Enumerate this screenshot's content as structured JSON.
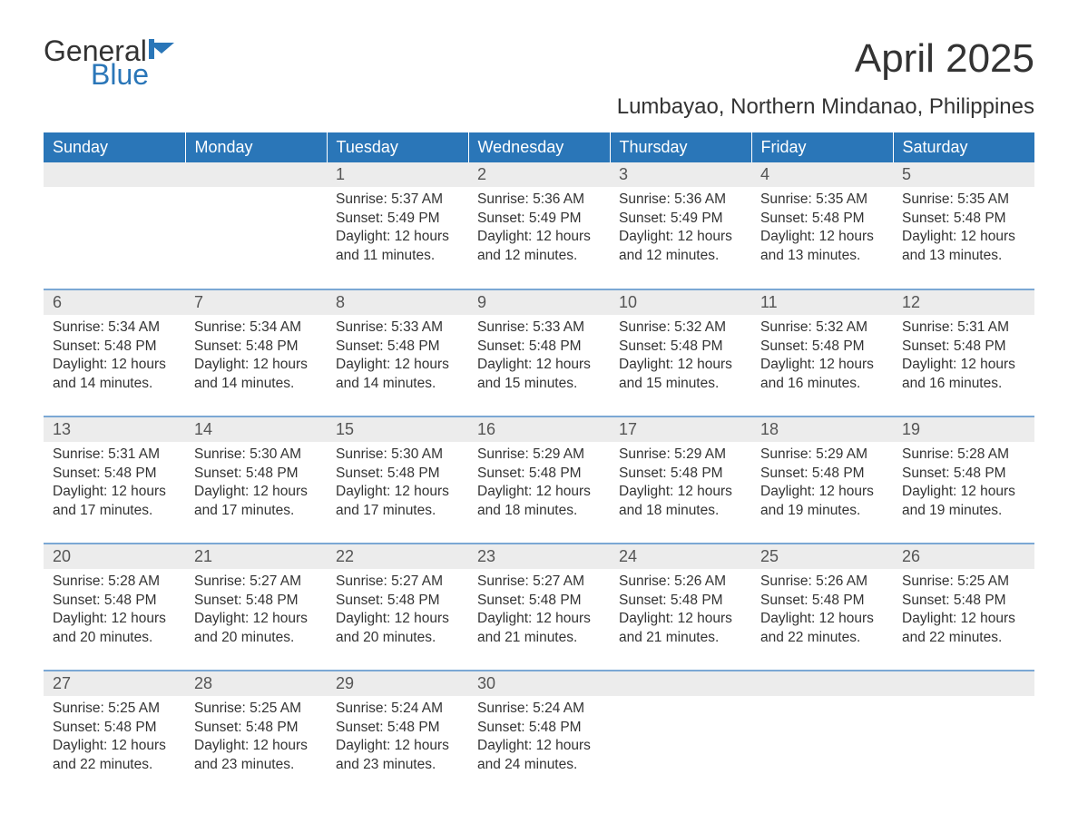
{
  "brand": {
    "part1": "General",
    "part2": "Blue",
    "flag_color": "#2a76b8"
  },
  "title": "April 2025",
  "location": "Lumbayao, Northern Mindanao, Philippines",
  "colors": {
    "header_bg": "#2a76b8",
    "header_text": "#ffffff",
    "daynum_bg": "#ececec",
    "row_border": "#7ba8d4",
    "body_text": "#333333"
  },
  "day_headers": [
    "Sunday",
    "Monday",
    "Tuesday",
    "Wednesday",
    "Thursday",
    "Friday",
    "Saturday"
  ],
  "weeks": [
    [
      null,
      null,
      {
        "n": "1",
        "sr": "Sunrise: 5:37 AM",
        "ss": "Sunset: 5:49 PM",
        "d1": "Daylight: 12 hours",
        "d2": "and 11 minutes."
      },
      {
        "n": "2",
        "sr": "Sunrise: 5:36 AM",
        "ss": "Sunset: 5:49 PM",
        "d1": "Daylight: 12 hours",
        "d2": "and 12 minutes."
      },
      {
        "n": "3",
        "sr": "Sunrise: 5:36 AM",
        "ss": "Sunset: 5:49 PM",
        "d1": "Daylight: 12 hours",
        "d2": "and 12 minutes."
      },
      {
        "n": "4",
        "sr": "Sunrise: 5:35 AM",
        "ss": "Sunset: 5:48 PM",
        "d1": "Daylight: 12 hours",
        "d2": "and 13 minutes."
      },
      {
        "n": "5",
        "sr": "Sunrise: 5:35 AM",
        "ss": "Sunset: 5:48 PM",
        "d1": "Daylight: 12 hours",
        "d2": "and 13 minutes."
      }
    ],
    [
      {
        "n": "6",
        "sr": "Sunrise: 5:34 AM",
        "ss": "Sunset: 5:48 PM",
        "d1": "Daylight: 12 hours",
        "d2": "and 14 minutes."
      },
      {
        "n": "7",
        "sr": "Sunrise: 5:34 AM",
        "ss": "Sunset: 5:48 PM",
        "d1": "Daylight: 12 hours",
        "d2": "and 14 minutes."
      },
      {
        "n": "8",
        "sr": "Sunrise: 5:33 AM",
        "ss": "Sunset: 5:48 PM",
        "d1": "Daylight: 12 hours",
        "d2": "and 14 minutes."
      },
      {
        "n": "9",
        "sr": "Sunrise: 5:33 AM",
        "ss": "Sunset: 5:48 PM",
        "d1": "Daylight: 12 hours",
        "d2": "and 15 minutes."
      },
      {
        "n": "10",
        "sr": "Sunrise: 5:32 AM",
        "ss": "Sunset: 5:48 PM",
        "d1": "Daylight: 12 hours",
        "d2": "and 15 minutes."
      },
      {
        "n": "11",
        "sr": "Sunrise: 5:32 AM",
        "ss": "Sunset: 5:48 PM",
        "d1": "Daylight: 12 hours",
        "d2": "and 16 minutes."
      },
      {
        "n": "12",
        "sr": "Sunrise: 5:31 AM",
        "ss": "Sunset: 5:48 PM",
        "d1": "Daylight: 12 hours",
        "d2": "and 16 minutes."
      }
    ],
    [
      {
        "n": "13",
        "sr": "Sunrise: 5:31 AM",
        "ss": "Sunset: 5:48 PM",
        "d1": "Daylight: 12 hours",
        "d2": "and 17 minutes."
      },
      {
        "n": "14",
        "sr": "Sunrise: 5:30 AM",
        "ss": "Sunset: 5:48 PM",
        "d1": "Daylight: 12 hours",
        "d2": "and 17 minutes."
      },
      {
        "n": "15",
        "sr": "Sunrise: 5:30 AM",
        "ss": "Sunset: 5:48 PM",
        "d1": "Daylight: 12 hours",
        "d2": "and 17 minutes."
      },
      {
        "n": "16",
        "sr": "Sunrise: 5:29 AM",
        "ss": "Sunset: 5:48 PM",
        "d1": "Daylight: 12 hours",
        "d2": "and 18 minutes."
      },
      {
        "n": "17",
        "sr": "Sunrise: 5:29 AM",
        "ss": "Sunset: 5:48 PM",
        "d1": "Daylight: 12 hours",
        "d2": "and 18 minutes."
      },
      {
        "n": "18",
        "sr": "Sunrise: 5:29 AM",
        "ss": "Sunset: 5:48 PM",
        "d1": "Daylight: 12 hours",
        "d2": "and 19 minutes."
      },
      {
        "n": "19",
        "sr": "Sunrise: 5:28 AM",
        "ss": "Sunset: 5:48 PM",
        "d1": "Daylight: 12 hours",
        "d2": "and 19 minutes."
      }
    ],
    [
      {
        "n": "20",
        "sr": "Sunrise: 5:28 AM",
        "ss": "Sunset: 5:48 PM",
        "d1": "Daylight: 12 hours",
        "d2": "and 20 minutes."
      },
      {
        "n": "21",
        "sr": "Sunrise: 5:27 AM",
        "ss": "Sunset: 5:48 PM",
        "d1": "Daylight: 12 hours",
        "d2": "and 20 minutes."
      },
      {
        "n": "22",
        "sr": "Sunrise: 5:27 AM",
        "ss": "Sunset: 5:48 PM",
        "d1": "Daylight: 12 hours",
        "d2": "and 20 minutes."
      },
      {
        "n": "23",
        "sr": "Sunrise: 5:27 AM",
        "ss": "Sunset: 5:48 PM",
        "d1": "Daylight: 12 hours",
        "d2": "and 21 minutes."
      },
      {
        "n": "24",
        "sr": "Sunrise: 5:26 AM",
        "ss": "Sunset: 5:48 PM",
        "d1": "Daylight: 12 hours",
        "d2": "and 21 minutes."
      },
      {
        "n": "25",
        "sr": "Sunrise: 5:26 AM",
        "ss": "Sunset: 5:48 PM",
        "d1": "Daylight: 12 hours",
        "d2": "and 22 minutes."
      },
      {
        "n": "26",
        "sr": "Sunrise: 5:25 AM",
        "ss": "Sunset: 5:48 PM",
        "d1": "Daylight: 12 hours",
        "d2": "and 22 minutes."
      }
    ],
    [
      {
        "n": "27",
        "sr": "Sunrise: 5:25 AM",
        "ss": "Sunset: 5:48 PM",
        "d1": "Daylight: 12 hours",
        "d2": "and 22 minutes."
      },
      {
        "n": "28",
        "sr": "Sunrise: 5:25 AM",
        "ss": "Sunset: 5:48 PM",
        "d1": "Daylight: 12 hours",
        "d2": "and 23 minutes."
      },
      {
        "n": "29",
        "sr": "Sunrise: 5:24 AM",
        "ss": "Sunset: 5:48 PM",
        "d1": "Daylight: 12 hours",
        "d2": "and 23 minutes."
      },
      {
        "n": "30",
        "sr": "Sunrise: 5:24 AM",
        "ss": "Sunset: 5:48 PM",
        "d1": "Daylight: 12 hours",
        "d2": "and 24 minutes."
      },
      null,
      null,
      null
    ]
  ]
}
